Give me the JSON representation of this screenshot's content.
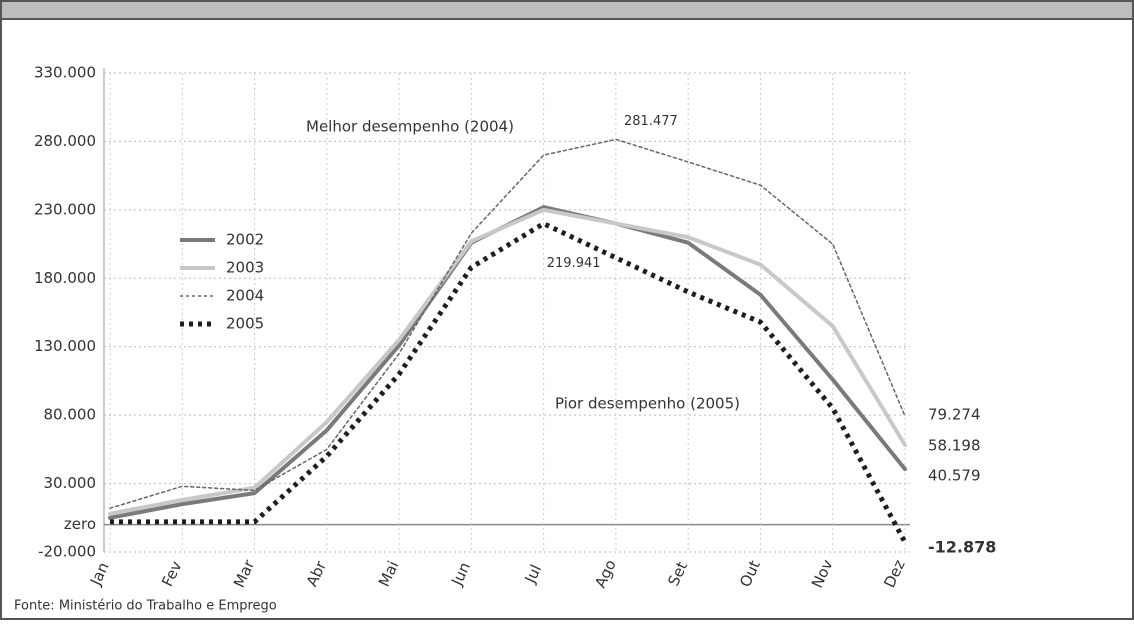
{
  "chart_data": {
    "type": "line",
    "categories": [
      "Jan",
      "Fev",
      "Mar",
      "Abr",
      "Mai",
      "Jun",
      "Jul",
      "Ago",
      "Set",
      "Out",
      "Nov",
      "Dez"
    ],
    "series": [
      {
        "name": "2002",
        "color": "#7a7a7a",
        "style": "solid",
        "width": 4,
        "values": [
          5000,
          15000,
          23000,
          69000,
          131000,
          206000,
          232000,
          220000,
          206000,
          168000,
          106000,
          40579
        ],
        "value_labels": [
          null,
          null,
          null,
          null,
          null,
          null,
          null,
          null,
          null,
          null,
          null,
          "40.579"
        ]
      },
      {
        "name": "2003",
        "color": "#c8c8c8",
        "style": "solid",
        "width": 4,
        "values": [
          8000,
          18000,
          27000,
          75000,
          135000,
          207000,
          230000,
          220000,
          210000,
          190000,
          145000,
          58198
        ],
        "value_labels": [
          null,
          null,
          null,
          null,
          null,
          null,
          null,
          null,
          null,
          null,
          null,
          "58.198"
        ]
      },
      {
        "name": "2004",
        "color": "#666666",
        "style": "dashed",
        "width": 1.5,
        "values": [
          12000,
          28000,
          25000,
          55000,
          125000,
          213000,
          270000,
          281477,
          265000,
          248000,
          205000,
          79274
        ],
        "value_labels": [
          null,
          null,
          null,
          null,
          null,
          null,
          null,
          "281.477",
          null,
          null,
          null,
          "79.274"
        ]
      },
      {
        "name": "2005",
        "color": "#1e1e1e",
        "style": "dotted",
        "width": 5,
        "values": [
          2000,
          2000,
          2000,
          50000,
          110000,
          188000,
          219941,
          195000,
          170000,
          148000,
          85000,
          -12878
        ],
        "value_labels": [
          null,
          null,
          null,
          null,
          null,
          null,
          "219.941",
          null,
          null,
          null,
          null,
          "-12.878"
        ]
      }
    ],
    "ylim": [
      -20000,
      330000
    ],
    "yticks": [
      {
        "value": -20000,
        "label": "-20.000"
      },
      {
        "value": 0,
        "label": "zero"
      },
      {
        "value": 30000,
        "label": "30.000"
      },
      {
        "value": 80000,
        "label": "80.000"
      },
      {
        "value": 130000,
        "label": "130.000"
      },
      {
        "value": 180000,
        "label": "180.000"
      },
      {
        "value": 230000,
        "label": "230.000"
      },
      {
        "value": 280000,
        "label": "280.000"
      },
      {
        "value": 330000,
        "label": "330.000"
      }
    ],
    "grid": true,
    "annotations": [
      "Melhor desempenho (2004)",
      "Pior desempenho (2005)"
    ],
    "source": "Fonte: Ministério do Trabalho e Emprego"
  }
}
